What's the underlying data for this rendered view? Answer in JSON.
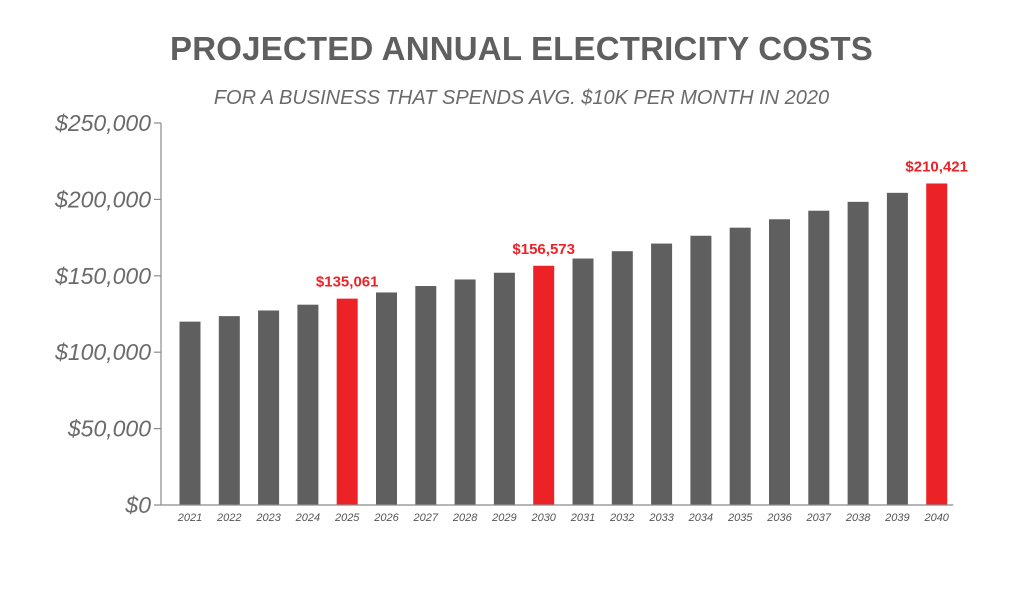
{
  "chart_data": {
    "type": "bar",
    "title": "PROJECTED ANNUAL ELECTRICITY COSTS",
    "subtitle": "FOR A BUSINESS THAT SPENDS AVG. $10K PER MONTH IN 2020",
    "xlabel": "",
    "ylabel": "",
    "ylim": [
      0,
      250000
    ],
    "yticks": [
      0,
      50000,
      100000,
      150000,
      200000,
      250000
    ],
    "ytick_labels": [
      "$0",
      "$50,000",
      "$100,000",
      "$150,000",
      "$200,000",
      "$250,000"
    ],
    "grid": false,
    "categories": [
      "2021",
      "2022",
      "2023",
      "2024",
      "2025",
      "2026",
      "2027",
      "2028",
      "2029",
      "2030",
      "2031",
      "2032",
      "2033",
      "2034",
      "2035",
      "2036",
      "2037",
      "2038",
      "2039",
      "2040"
    ],
    "values": [
      120000,
      123600,
      127300,
      131100,
      135061,
      139100,
      143300,
      147600,
      152000,
      156573,
      161300,
      166100,
      171100,
      176200,
      181500,
      187000,
      192600,
      198400,
      204300,
      210421
    ],
    "highlighted": [
      "2025",
      "2030",
      "2040"
    ],
    "data_labels": [
      {
        "category": "2025",
        "text": "$135,061"
      },
      {
        "category": "2030",
        "text": "$156,573"
      },
      {
        "category": "2040",
        "text": "$210,421"
      }
    ],
    "colors": {
      "bar": "#5f5f5f",
      "highlight": "#ec2227",
      "axis": "#8a8a8a"
    }
  }
}
